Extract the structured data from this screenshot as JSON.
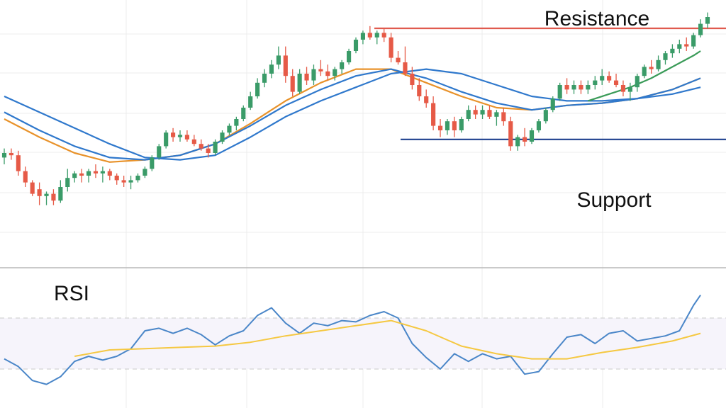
{
  "chart_data": [
    {
      "type": "candlestick",
      "panel": "price",
      "y_range": [
        0,
        100
      ],
      "grid": true,
      "candles": [
        {
          "o": 43,
          "h": 47,
          "l": 40,
          "c": 45
        },
        {
          "o": 45,
          "h": 47,
          "l": 42,
          "c": 44
        },
        {
          "o": 44,
          "h": 46,
          "l": 35,
          "c": 37
        },
        {
          "o": 37,
          "h": 39,
          "l": 30,
          "c": 32
        },
        {
          "o": 32,
          "h": 33,
          "l": 26,
          "c": 27
        },
        {
          "o": 29,
          "h": 32,
          "l": 22,
          "c": 26
        },
        {
          "o": 26,
          "h": 28,
          "l": 22,
          "c": 27
        },
        {
          "o": 27,
          "h": 29,
          "l": 22,
          "c": 24
        },
        {
          "o": 24,
          "h": 33,
          "l": 23,
          "c": 30
        },
        {
          "o": 30,
          "h": 38,
          "l": 28,
          "c": 34
        },
        {
          "o": 34,
          "h": 37,
          "l": 32,
          "c": 36
        },
        {
          "o": 36,
          "h": 38,
          "l": 32,
          "c": 35
        },
        {
          "o": 35,
          "h": 38,
          "l": 32,
          "c": 37
        },
        {
          "o": 37,
          "h": 40,
          "l": 34,
          "c": 36
        },
        {
          "o": 36,
          "h": 39,
          "l": 32,
          "c": 37
        },
        {
          "o": 37,
          "h": 38,
          "l": 33,
          "c": 35
        },
        {
          "o": 35,
          "h": 36,
          "l": 31,
          "c": 33
        },
        {
          "o": 33,
          "h": 35,
          "l": 30,
          "c": 32
        },
        {
          "o": 32,
          "h": 35,
          "l": 29,
          "c": 33
        },
        {
          "o": 33,
          "h": 36,
          "l": 32,
          "c": 35
        },
        {
          "o": 35,
          "h": 39,
          "l": 34,
          "c": 38
        },
        {
          "o": 38,
          "h": 44,
          "l": 37,
          "c": 43
        },
        {
          "o": 43,
          "h": 49,
          "l": 42,
          "c": 48
        },
        {
          "o": 48,
          "h": 55,
          "l": 47,
          "c": 54
        },
        {
          "o": 54,
          "h": 56,
          "l": 50,
          "c": 52
        },
        {
          "o": 52,
          "h": 55,
          "l": 50,
          "c": 53
        },
        {
          "o": 53,
          "h": 55,
          "l": 50,
          "c": 51
        },
        {
          "o": 51,
          "h": 53,
          "l": 48,
          "c": 49
        },
        {
          "o": 49,
          "h": 51,
          "l": 46,
          "c": 47
        },
        {
          "o": 47,
          "h": 49,
          "l": 43,
          "c": 45
        },
        {
          "o": 45,
          "h": 51,
          "l": 44,
          "c": 50
        },
        {
          "o": 50,
          "h": 55,
          "l": 49,
          "c": 54
        },
        {
          "o": 54,
          "h": 58,
          "l": 53,
          "c": 57
        },
        {
          "o": 57,
          "h": 61,
          "l": 55,
          "c": 60
        },
        {
          "o": 60,
          "h": 66,
          "l": 59,
          "c": 65
        },
        {
          "o": 65,
          "h": 72,
          "l": 64,
          "c": 70
        },
        {
          "o": 70,
          "h": 78,
          "l": 69,
          "c": 76
        },
        {
          "o": 76,
          "h": 82,
          "l": 74,
          "c": 80
        },
        {
          "o": 80,
          "h": 86,
          "l": 78,
          "c": 84
        },
        {
          "o": 84,
          "h": 92,
          "l": 82,
          "c": 88
        },
        {
          "o": 88,
          "h": 92,
          "l": 76,
          "c": 79
        },
        {
          "o": 79,
          "h": 82,
          "l": 70,
          "c": 72
        },
        {
          "o": 72,
          "h": 82,
          "l": 71,
          "c": 80
        },
        {
          "o": 80,
          "h": 83,
          "l": 75,
          "c": 77
        },
        {
          "o": 77,
          "h": 84,
          "l": 75,
          "c": 82
        },
        {
          "o": 82,
          "h": 86,
          "l": 79,
          "c": 81
        },
        {
          "o": 81,
          "h": 84,
          "l": 77,
          "c": 79
        },
        {
          "o": 79,
          "h": 83,
          "l": 77,
          "c": 82
        },
        {
          "o": 82,
          "h": 86,
          "l": 80,
          "c": 85
        },
        {
          "o": 85,
          "h": 91,
          "l": 84,
          "c": 90
        },
        {
          "o": 90,
          "h": 96,
          "l": 89,
          "c": 95
        },
        {
          "o": 95,
          "h": 99,
          "l": 93,
          "c": 98
        },
        {
          "o": 98,
          "h": 101,
          "l": 95,
          "c": 96
        },
        {
          "o": 96,
          "h": 99,
          "l": 93,
          "c": 98
        },
        {
          "o": 98,
          "h": 100,
          "l": 94,
          "c": 96
        },
        {
          "o": 96,
          "h": 98,
          "l": 85,
          "c": 87
        },
        {
          "o": 87,
          "h": 90,
          "l": 84,
          "c": 85
        },
        {
          "o": 85,
          "h": 92,
          "l": 79,
          "c": 80
        },
        {
          "o": 80,
          "h": 83,
          "l": 73,
          "c": 75
        },
        {
          "o": 75,
          "h": 78,
          "l": 68,
          "c": 70
        },
        {
          "o": 70,
          "h": 73,
          "l": 65,
          "c": 67
        },
        {
          "o": 67,
          "h": 70,
          "l": 55,
          "c": 57
        },
        {
          "o": 57,
          "h": 60,
          "l": 52,
          "c": 55
        },
        {
          "o": 55,
          "h": 60,
          "l": 53,
          "c": 59
        },
        {
          "o": 59,
          "h": 61,
          "l": 52,
          "c": 55
        },
        {
          "o": 55,
          "h": 61,
          "l": 54,
          "c": 60
        },
        {
          "o": 60,
          "h": 66,
          "l": 59,
          "c": 64
        },
        {
          "o": 64,
          "h": 66,
          "l": 60,
          "c": 62
        },
        {
          "o": 62,
          "h": 66,
          "l": 60,
          "c": 64
        },
        {
          "o": 64,
          "h": 66,
          "l": 60,
          "c": 61
        },
        {
          "o": 61,
          "h": 64,
          "l": 57,
          "c": 63
        },
        {
          "o": 63,
          "h": 65,
          "l": 57,
          "c": 59
        },
        {
          "o": 59,
          "h": 61,
          "l": 46,
          "c": 48
        },
        {
          "o": 48,
          "h": 53,
          "l": 46,
          "c": 52
        },
        {
          "o": 52,
          "h": 56,
          "l": 48,
          "c": 50
        },
        {
          "o": 50,
          "h": 56,
          "l": 49,
          "c": 55
        },
        {
          "o": 55,
          "h": 60,
          "l": 54,
          "c": 59
        },
        {
          "o": 59,
          "h": 65,
          "l": 58,
          "c": 64
        },
        {
          "o": 64,
          "h": 70,
          "l": 63,
          "c": 69
        },
        {
          "o": 69,
          "h": 76,
          "l": 68,
          "c": 75
        },
        {
          "o": 75,
          "h": 78,
          "l": 71,
          "c": 73
        },
        {
          "o": 73,
          "h": 77,
          "l": 71,
          "c": 75
        },
        {
          "o": 75,
          "h": 77,
          "l": 71,
          "c": 73
        },
        {
          "o": 73,
          "h": 77,
          "l": 71,
          "c": 75
        },
        {
          "o": 75,
          "h": 79,
          "l": 73,
          "c": 77
        },
        {
          "o": 77,
          "h": 82,
          "l": 75,
          "c": 79
        },
        {
          "o": 79,
          "h": 81,
          "l": 76,
          "c": 77
        },
        {
          "o": 77,
          "h": 80,
          "l": 74,
          "c": 75
        },
        {
          "o": 75,
          "h": 77,
          "l": 70,
          "c": 72
        },
        {
          "o": 72,
          "h": 76,
          "l": 68,
          "c": 74
        },
        {
          "o": 74,
          "h": 80,
          "l": 72,
          "c": 79
        },
        {
          "o": 79,
          "h": 84,
          "l": 78,
          "c": 83
        },
        {
          "o": 83,
          "h": 86,
          "l": 80,
          "c": 82
        },
        {
          "o": 82,
          "h": 88,
          "l": 81,
          "c": 86
        },
        {
          "o": 86,
          "h": 90,
          "l": 84,
          "c": 89
        },
        {
          "o": 89,
          "h": 93,
          "l": 87,
          "c": 91
        },
        {
          "o": 91,
          "h": 95,
          "l": 89,
          "c": 93
        },
        {
          "o": 93,
          "h": 96,
          "l": 90,
          "c": 92
        },
        {
          "o": 92,
          "h": 98,
          "l": 91,
          "c": 97
        },
        {
          "o": 97,
          "h": 104,
          "l": 96,
          "c": 102
        },
        {
          "o": 102,
          "h": 107,
          "l": 100,
          "c": 105
        }
      ],
      "moving_averages": [
        {
          "color": "#e8922a",
          "values": [
            [
              0,
              60
            ],
            [
              5,
              52
            ],
            [
              10,
              45
            ],
            [
              15,
              41
            ],
            [
              20,
              42
            ],
            [
              25,
              44
            ],
            [
              30,
              49
            ],
            [
              35,
              58
            ],
            [
              40,
              68
            ],
            [
              45,
              76
            ],
            [
              50,
              82
            ],
            [
              55,
              82
            ],
            [
              60,
              76
            ],
            [
              65,
              70
            ],
            [
              70,
              65
            ],
            [
              75,
              64
            ],
            [
              80,
              66
            ],
            [
              85,
              67
            ],
            [
              90,
              69
            ],
            [
              95,
              73
            ],
            [
              99,
              78
            ]
          ]
        },
        {
          "color": "#2f78cc",
          "values": [
            [
              0,
              70
            ],
            [
              5,
              63
            ],
            [
              10,
              56
            ],
            [
              15,
              49
            ],
            [
              20,
              43
            ],
            [
              25,
              42
            ],
            [
              30,
              44
            ],
            [
              35,
              52
            ],
            [
              40,
              61
            ],
            [
              45,
              68
            ],
            [
              50,
              74
            ],
            [
              55,
              80
            ],
            [
              60,
              82
            ],
            [
              65,
              80
            ],
            [
              70,
              75
            ],
            [
              75,
              70
            ],
            [
              80,
              68
            ],
            [
              85,
              68
            ],
            [
              90,
              69
            ],
            [
              95,
              71
            ],
            [
              99,
              74
            ]
          ]
        },
        {
          "color": "#2f78cc",
          "values": [
            [
              0,
              63
            ],
            [
              5,
              55
            ],
            [
              10,
              48
            ],
            [
              15,
              43
            ],
            [
              20,
              42
            ],
            [
              25,
              44
            ],
            [
              30,
              49
            ],
            [
              35,
              57
            ],
            [
              40,
              66
            ],
            [
              45,
              73
            ],
            [
              50,
              79
            ],
            [
              55,
              82
            ],
            [
              60,
              78
            ],
            [
              65,
              72
            ],
            [
              70,
              67
            ],
            [
              75,
              64
            ],
            [
              80,
              66
            ],
            [
              85,
              67
            ],
            [
              90,
              69
            ],
            [
              95,
              73
            ],
            [
              99,
              78
            ]
          ]
        },
        {
          "color": "#3a9b58",
          "values": [
            [
              83,
              68
            ],
            [
              86,
              71
            ],
            [
              89,
              74
            ],
            [
              92,
              78
            ],
            [
              95,
              83
            ],
            [
              98,
              88
            ],
            [
              99,
              90
            ]
          ]
        }
      ],
      "levels": [
        {
          "label": "Resistance",
          "value": 100,
          "color": "#e05a4e"
        },
        {
          "label": "Support",
          "value": 51,
          "color": "#1d3f8e"
        }
      ]
    },
    {
      "type": "line",
      "panel": "indicator",
      "title": "RSI",
      "y_range": [
        0,
        100
      ],
      "reference_levels": [
        70,
        30
      ],
      "series": [
        {
          "color": "#4a86c8",
          "values": [
            [
              0,
              38
            ],
            [
              2,
              32
            ],
            [
              4,
              21
            ],
            [
              6,
              18
            ],
            [
              8,
              24
            ],
            [
              10,
              36
            ],
            [
              12,
              40
            ],
            [
              14,
              37
            ],
            [
              16,
              40
            ],
            [
              18,
              46
            ],
            [
              20,
              60
            ],
            [
              22,
              62
            ],
            [
              24,
              58
            ],
            [
              26,
              62
            ],
            [
              28,
              57
            ],
            [
              30,
              49
            ],
            [
              32,
              56
            ],
            [
              34,
              60
            ],
            [
              36,
              72
            ],
            [
              38,
              78
            ],
            [
              40,
              66
            ],
            [
              42,
              58
            ],
            [
              44,
              66
            ],
            [
              46,
              64
            ],
            [
              48,
              68
            ],
            [
              50,
              67
            ],
            [
              52,
              72
            ],
            [
              54,
              75
            ],
            [
              56,
              70
            ],
            [
              58,
              50
            ],
            [
              60,
              39
            ],
            [
              62,
              30
            ],
            [
              64,
              42
            ],
            [
              66,
              36
            ],
            [
              68,
              42
            ],
            [
              70,
              38
            ],
            [
              72,
              40
            ],
            [
              74,
              26
            ],
            [
              76,
              28
            ],
            [
              78,
              42
            ],
            [
              80,
              55
            ],
            [
              82,
              57
            ],
            [
              84,
              50
            ],
            [
              86,
              58
            ],
            [
              88,
              60
            ],
            [
              90,
              52
            ],
            [
              92,
              54
            ],
            [
              94,
              56
            ],
            [
              96,
              60
            ],
            [
              98,
              80
            ],
            [
              99,
              88
            ]
          ]
        },
        {
          "color": "#f5c842",
          "values": [
            [
              10,
              40
            ],
            [
              15,
              45
            ],
            [
              20,
              46
            ],
            [
              25,
              47
            ],
            [
              30,
              48
            ],
            [
              35,
              51
            ],
            [
              40,
              56
            ],
            [
              45,
              60
            ],
            [
              50,
              64
            ],
            [
              55,
              68
            ],
            [
              60,
              60
            ],
            [
              65,
              48
            ],
            [
              70,
              42
            ],
            [
              75,
              38
            ],
            [
              80,
              38
            ],
            [
              85,
              43
            ],
            [
              90,
              47
            ],
            [
              95,
              52
            ],
            [
              99,
              58
            ]
          ]
        }
      ]
    }
  ]
}
